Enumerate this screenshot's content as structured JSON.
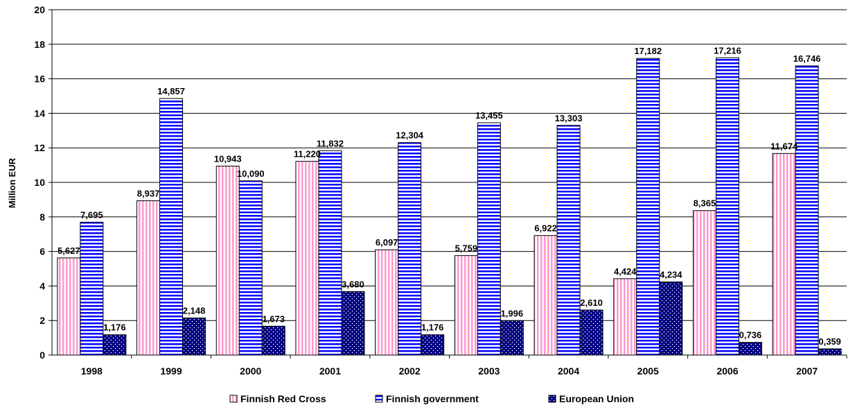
{
  "chart_data": {
    "type": "bar",
    "ylabel": "Million EUR",
    "ylim": [
      0,
      20
    ],
    "ytick_step": 2,
    "grid": true,
    "legend_position": "bottom",
    "categories": [
      "1998",
      "1999",
      "2000",
      "2001",
      "2002",
      "2003",
      "2004",
      "2005",
      "2006",
      "2007"
    ],
    "series": [
      {
        "name": "Finnish Red Cross",
        "color": "#ff99cc",
        "pattern": "vertical-stripes",
        "values": [
          5.627,
          8.937,
          10.943,
          11.22,
          6.097,
          5.759,
          6.922,
          4.424,
          8.365,
          11.674
        ],
        "labels": [
          "5,627",
          "8,937",
          "10,943",
          "11,220",
          "6,097",
          "5,759",
          "6,922",
          "4,424",
          "8,365",
          "11,674"
        ]
      },
      {
        "name": "Finnish government",
        "color": "#0000ff",
        "pattern": "horizontal-stripes",
        "values": [
          7.695,
          14.857,
          10.09,
          11.832,
          12.304,
          13.455,
          13.303,
          17.182,
          17.216,
          16.746
        ],
        "labels": [
          "7,695",
          "14,857",
          "10,090",
          "11,832",
          "12,304",
          "13,455",
          "13,303",
          "17,182",
          "17,216",
          "16,746"
        ]
      },
      {
        "name": "European Union",
        "color": "#000080",
        "pattern": "dots",
        "values": [
          1.176,
          2.148,
          1.673,
          3.68,
          1.176,
          1.996,
          2.61,
          4.234,
          0.736,
          0.359
        ],
        "labels": [
          "1,176",
          "2,148",
          "1,673",
          "3,680",
          "1,176",
          "1,996",
          "2,610",
          "4,234",
          "0,736",
          "0,359"
        ]
      }
    ]
  }
}
